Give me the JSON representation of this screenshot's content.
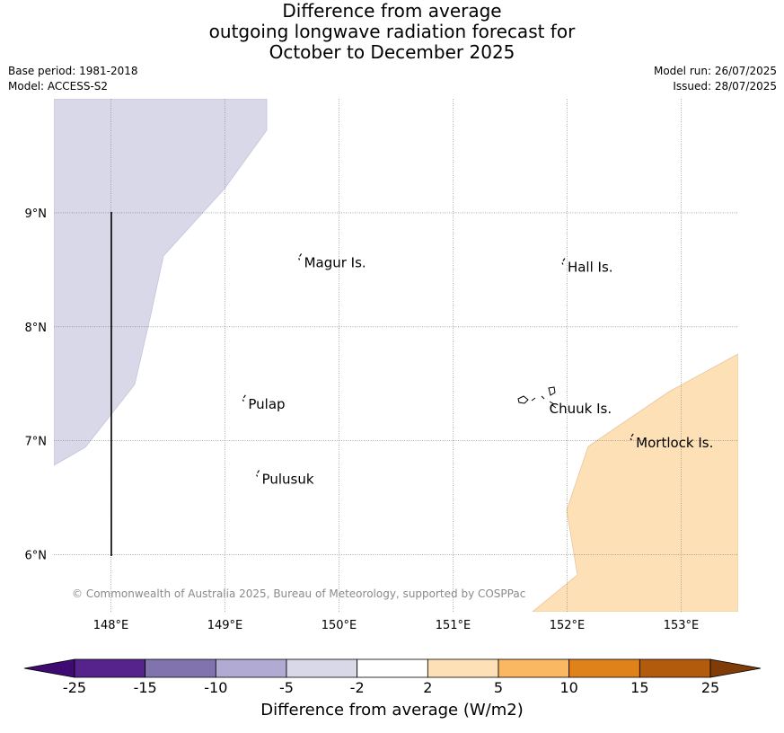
{
  "title": {
    "line1": "Difference from average",
    "line2": "outgoing longwave radiation forecast for",
    "line3": "October to December 2025"
  },
  "meta_left": {
    "base_period": "Base period: 1981-2018",
    "model": "Model: ACCESS-S2"
  },
  "meta_right": {
    "model_run": "Model run: 26/07/2025",
    "issued": "Issued: 28/07/2025"
  },
  "map": {
    "lon_range": [
      147.5,
      153.5
    ],
    "lat_range": [
      5.5,
      10.0
    ],
    "lon_ticks": [
      148,
      149,
      150,
      151,
      152,
      153
    ],
    "lon_tick_labels": [
      "148°E",
      "149°E",
      "150°E",
      "151°E",
      "152°E",
      "153°E"
    ],
    "lat_ticks": [
      6,
      7,
      8,
      9
    ],
    "lat_tick_labels": [
      "6°N",
      "7°N",
      "8°N",
      "9°N"
    ],
    "gridlines": true,
    "places": [
      {
        "name": "Magur Is.",
        "lon": 149.67,
        "lat": 8.57
      },
      {
        "name": "Hall Is.",
        "lon": 151.98,
        "lat": 8.53
      },
      {
        "name": "Pulap",
        "lon": 149.18,
        "lat": 7.33
      },
      {
        "name": "Chuuk Is.",
        "lon": 151.82,
        "lat": 7.29
      },
      {
        "name": "Mortlock Is.",
        "lon": 152.58,
        "lat": 6.99
      },
      {
        "name": "Pulusuk",
        "lon": 149.3,
        "lat": 6.67
      }
    ],
    "anomaly_regions": [
      {
        "category": "-5 to -2",
        "color": "#d8d8e9"
      },
      {
        "category": "2 to 5",
        "color": "#fde0b6"
      }
    ],
    "copyright": "© Commonwealth of Australia 2025, Bureau of Meteorology, supported by COSPPac"
  },
  "colorbar": {
    "label": "Difference from average (W/m2)",
    "tick_labels": [
      "-25",
      "-15",
      "-10",
      "-5",
      "-2",
      "2",
      "5",
      "10",
      "15",
      "25"
    ],
    "colors": [
      "#3f0a72",
      "#56238d",
      "#8173ae",
      "#b1aad3",
      "#d8d8e9",
      "#ffffff",
      "#fde0b6",
      "#fbb862",
      "#e0821a",
      "#b35b0d",
      "#7f3b08"
    ]
  }
}
